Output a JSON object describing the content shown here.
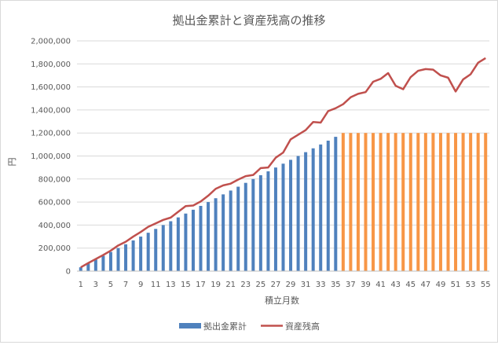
{
  "chart_data": {
    "type": "bar",
    "title": "拠出金累計と資産残高の推移",
    "xlabel": "積立月数",
    "ylabel": "円",
    "ylim": [
      0,
      2000000
    ],
    "yticks": [
      0,
      200000,
      400000,
      600000,
      800000,
      1000000,
      1200000,
      1400000,
      1600000,
      1800000,
      2000000
    ],
    "ytick_labels": [
      "0",
      "200,000",
      "400,000",
      "600,000",
      "800,000",
      "1,000,000",
      "1,200,000",
      "1,400,000",
      "1,600,000",
      "1,800,000",
      "2,000,000"
    ],
    "x": [
      1,
      2,
      3,
      4,
      5,
      6,
      7,
      8,
      9,
      10,
      11,
      12,
      13,
      14,
      15,
      16,
      17,
      18,
      19,
      20,
      21,
      22,
      23,
      24,
      25,
      26,
      27,
      28,
      29,
      30,
      31,
      32,
      33,
      34,
      35,
      36,
      37,
      38,
      39,
      40,
      41,
      42,
      43,
      44,
      45,
      46,
      47,
      48,
      49,
      50,
      51,
      52,
      53,
      54,
      55
    ],
    "xtick_labels": [
      "1",
      "3",
      "5",
      "7",
      "9",
      "11",
      "13",
      "15",
      "17",
      "19",
      "21",
      "23",
      "25",
      "27",
      "29",
      "31",
      "33",
      "35",
      "37",
      "39",
      "41",
      "43",
      "45",
      "47",
      "49",
      "51",
      "53",
      "55"
    ],
    "gridlines": true,
    "legend_position": "bottom",
    "series": [
      {
        "name": "拠出金累計",
        "type": "bar",
        "color": "#4f81bd",
        "secondary_color": "#f79646",
        "values": [
          33333,
          66667,
          100000,
          133333,
          166667,
          200000,
          233333,
          266667,
          300000,
          333333,
          366667,
          400000,
          433333,
          466667,
          500000,
          533333,
          566667,
          600000,
          633333,
          666667,
          700000,
          733333,
          766667,
          800000,
          833333,
          866667,
          900000,
          933333,
          966667,
          1000000,
          1033333,
          1066667,
          1100000,
          1133333,
          1166667,
          1200000,
          1200000,
          1200000,
          1200000,
          1200000,
          1200000,
          1200000,
          1200000,
          1200000,
          1200000,
          1200000,
          1200000,
          1200000,
          1200000,
          1200000,
          1200000,
          1200000,
          1200000,
          1200000,
          1200000
        ]
      },
      {
        "name": "資産残高",
        "type": "line",
        "color": "#c0504d",
        "values": [
          33000,
          70000,
          105000,
          140000,
          178000,
          223000,
          255000,
          300000,
          340000,
          385000,
          415000,
          445000,
          465000,
          515000,
          565000,
          570000,
          605000,
          655000,
          715000,
          745000,
          760000,
          795000,
          825000,
          835000,
          895000,
          900000,
          985000,
          1030000,
          1145000,
          1185000,
          1225000,
          1295000,
          1290000,
          1390000,
          1415000,
          1450000,
          1510000,
          1540000,
          1555000,
          1645000,
          1670000,
          1720000,
          1610000,
          1580000,
          1685000,
          1740000,
          1755000,
          1750000,
          1700000,
          1680000,
          1560000,
          1665000,
          1710000,
          1810000,
          1850000
        ]
      }
    ]
  }
}
